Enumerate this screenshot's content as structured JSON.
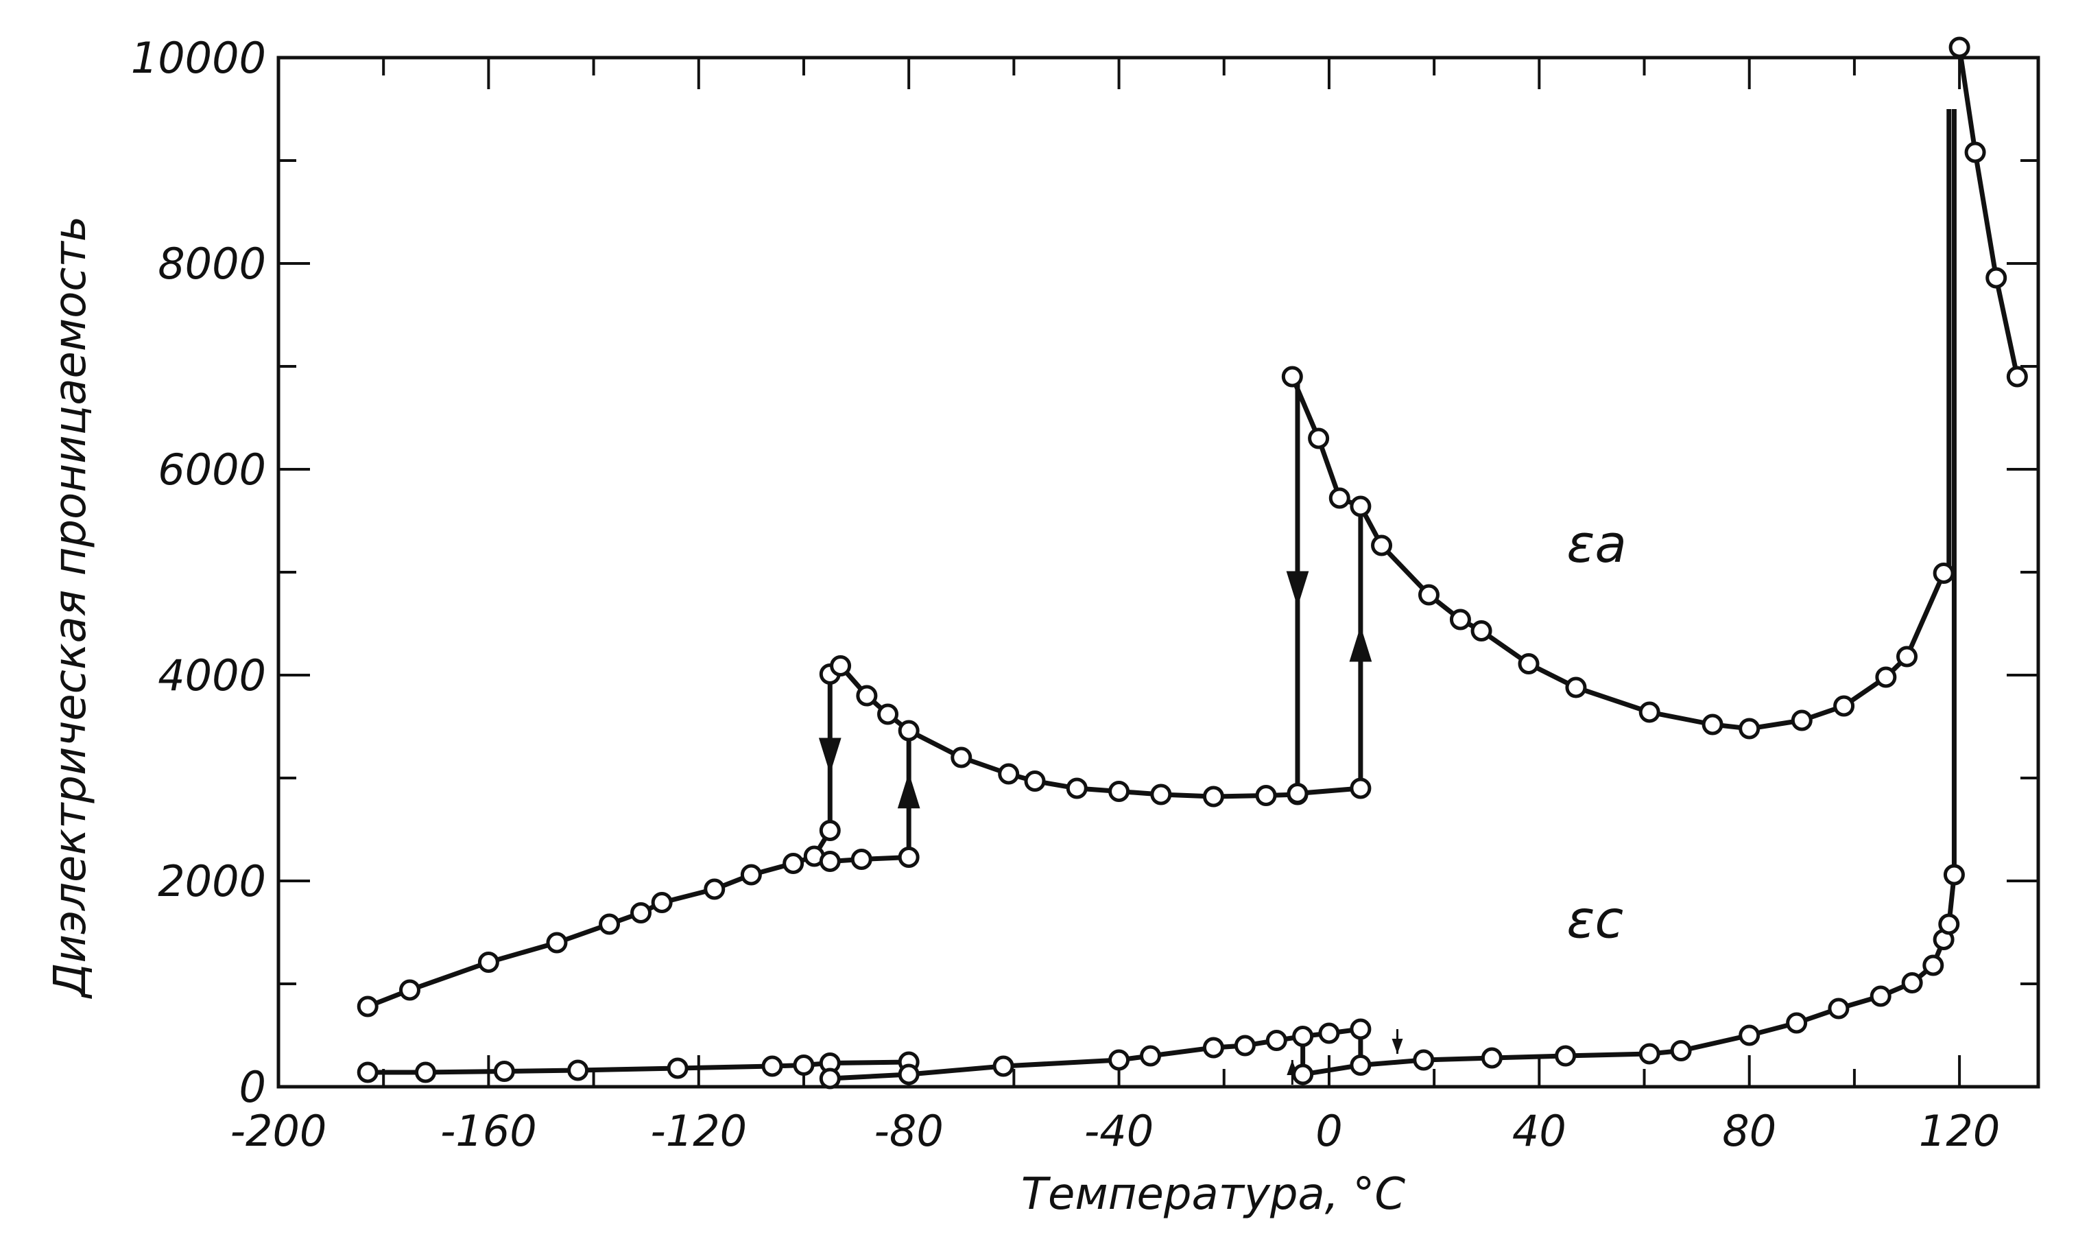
{
  "chart_data": {
    "type": "line",
    "title": "",
    "xlabel": "Температура, °С",
    "ylabel": "Диэлектрическая проницаемость",
    "xlim": [
      -200,
      135
    ],
    "ylim": [
      0,
      10000
    ],
    "x_ticks": [
      "-200",
      "-160",
      "-120",
      "-80",
      "-40",
      "0",
      "40",
      "80",
      "120"
    ],
    "y_ticks": [
      "0",
      "2000",
      "4000",
      "6000",
      "8000",
      "10000"
    ],
    "grid": false,
    "legend": "none",
    "series": [
      {
        "name": "εa",
        "segments": [
          {
            "x": [
              -183,
              -175,
              -160,
              -147,
              -137,
              -131,
              -127,
              -117,
              -110,
              -102,
              -98,
              -95
            ],
            "y": [
              780,
              940,
              1210,
              1400,
              1580,
              1690,
              1790,
              1920,
              2060,
              2170,
              2240,
              2490
            ]
          },
          {
            "x": [
              -95,
              -93,
              -88,
              -84,
              -80,
              -70,
              -61,
              -56,
              -48,
              -40,
              -32,
              -22,
              -12,
              -6
            ],
            "y": [
              4010,
              4090,
              3800,
              3620,
              3460,
              3200,
              3040,
              2970,
              2900,
              2870,
              2840,
              2820,
              2830,
              2840
            ]
          },
          {
            "x": [
              -95,
              -89,
              -80
            ],
            "y": [
              2190,
              2210,
              2230
            ]
          },
          {
            "x": [
              -6,
              6
            ],
            "y": [
              2850,
              2900
            ]
          },
          {
            "x": [
              -7,
              -2,
              2,
              6,
              10,
              19,
              25,
              29,
              38,
              47,
              61,
              73,
              80,
              90,
              98,
              106,
              110,
              117
            ],
            "y": [
              6900,
              6300,
              5720,
              5640,
              5260,
              4780,
              4540,
              4430,
              4110,
              3880,
              3640,
              3520,
              3480,
              3560,
              3700,
              3980,
              4180,
              4990
            ]
          },
          {
            "x": [
              120,
              123,
              127,
              131
            ],
            "y": [
              10100,
              9080,
              7860,
              6900
            ]
          }
        ],
        "jumps": [
          {
            "x": -95,
            "from": 4010,
            "to": 2490,
            "direction": "down"
          },
          {
            "x": -80,
            "from": 2230,
            "to": 3460,
            "direction": "up"
          },
          {
            "x": -6,
            "from": 6900,
            "to": 2840,
            "direction": "down"
          },
          {
            "x": 6,
            "from": 2900,
            "to": 5640,
            "direction": "up"
          },
          {
            "x": 118,
            "from": 4990,
            "to": 9500,
            "direction": "up"
          }
        ]
      },
      {
        "name": "εc",
        "segments": [
          {
            "x": [
              -183,
              -172,
              -157,
              -143,
              -124,
              -106,
              -100,
              -95,
              -80
            ],
            "y": [
              140,
              140,
              150,
              160,
              180,
              200,
              210,
              230,
              240
            ]
          },
          {
            "x": [
              -95,
              -80,
              -62,
              -40,
              -34,
              -22,
              -16,
              -10,
              -5,
              0,
              6
            ],
            "y": [
              80,
              120,
              200,
              260,
              300,
              380,
              400,
              450,
              490,
              520,
              560
            ]
          },
          {
            "x": [
              -5,
              6,
              18,
              31,
              45,
              61,
              67,
              80,
              89,
              97,
              105,
              111,
              115,
              117,
              118,
              119
            ],
            "y": [
              120,
              210,
              260,
              280,
              300,
              320,
              350,
              500,
              620,
              760,
              880,
              1010,
              1180,
              1430,
              1580,
              2060
            ]
          }
        ],
        "jumps": [
          {
            "x": -5,
            "from": 490,
            "to": 120,
            "direction": "down"
          },
          {
            "x": 6,
            "from": 210,
            "to": 560,
            "direction": "up"
          },
          {
            "x": 119,
            "from": 2060,
            "to": 9500,
            "direction": "up"
          }
        ]
      }
    ],
    "annotations": [
      {
        "text": "εa",
        "x": 40,
        "y": 5100
      },
      {
        "text": "εc",
        "x": 40,
        "y": 1450
      }
    ]
  }
}
